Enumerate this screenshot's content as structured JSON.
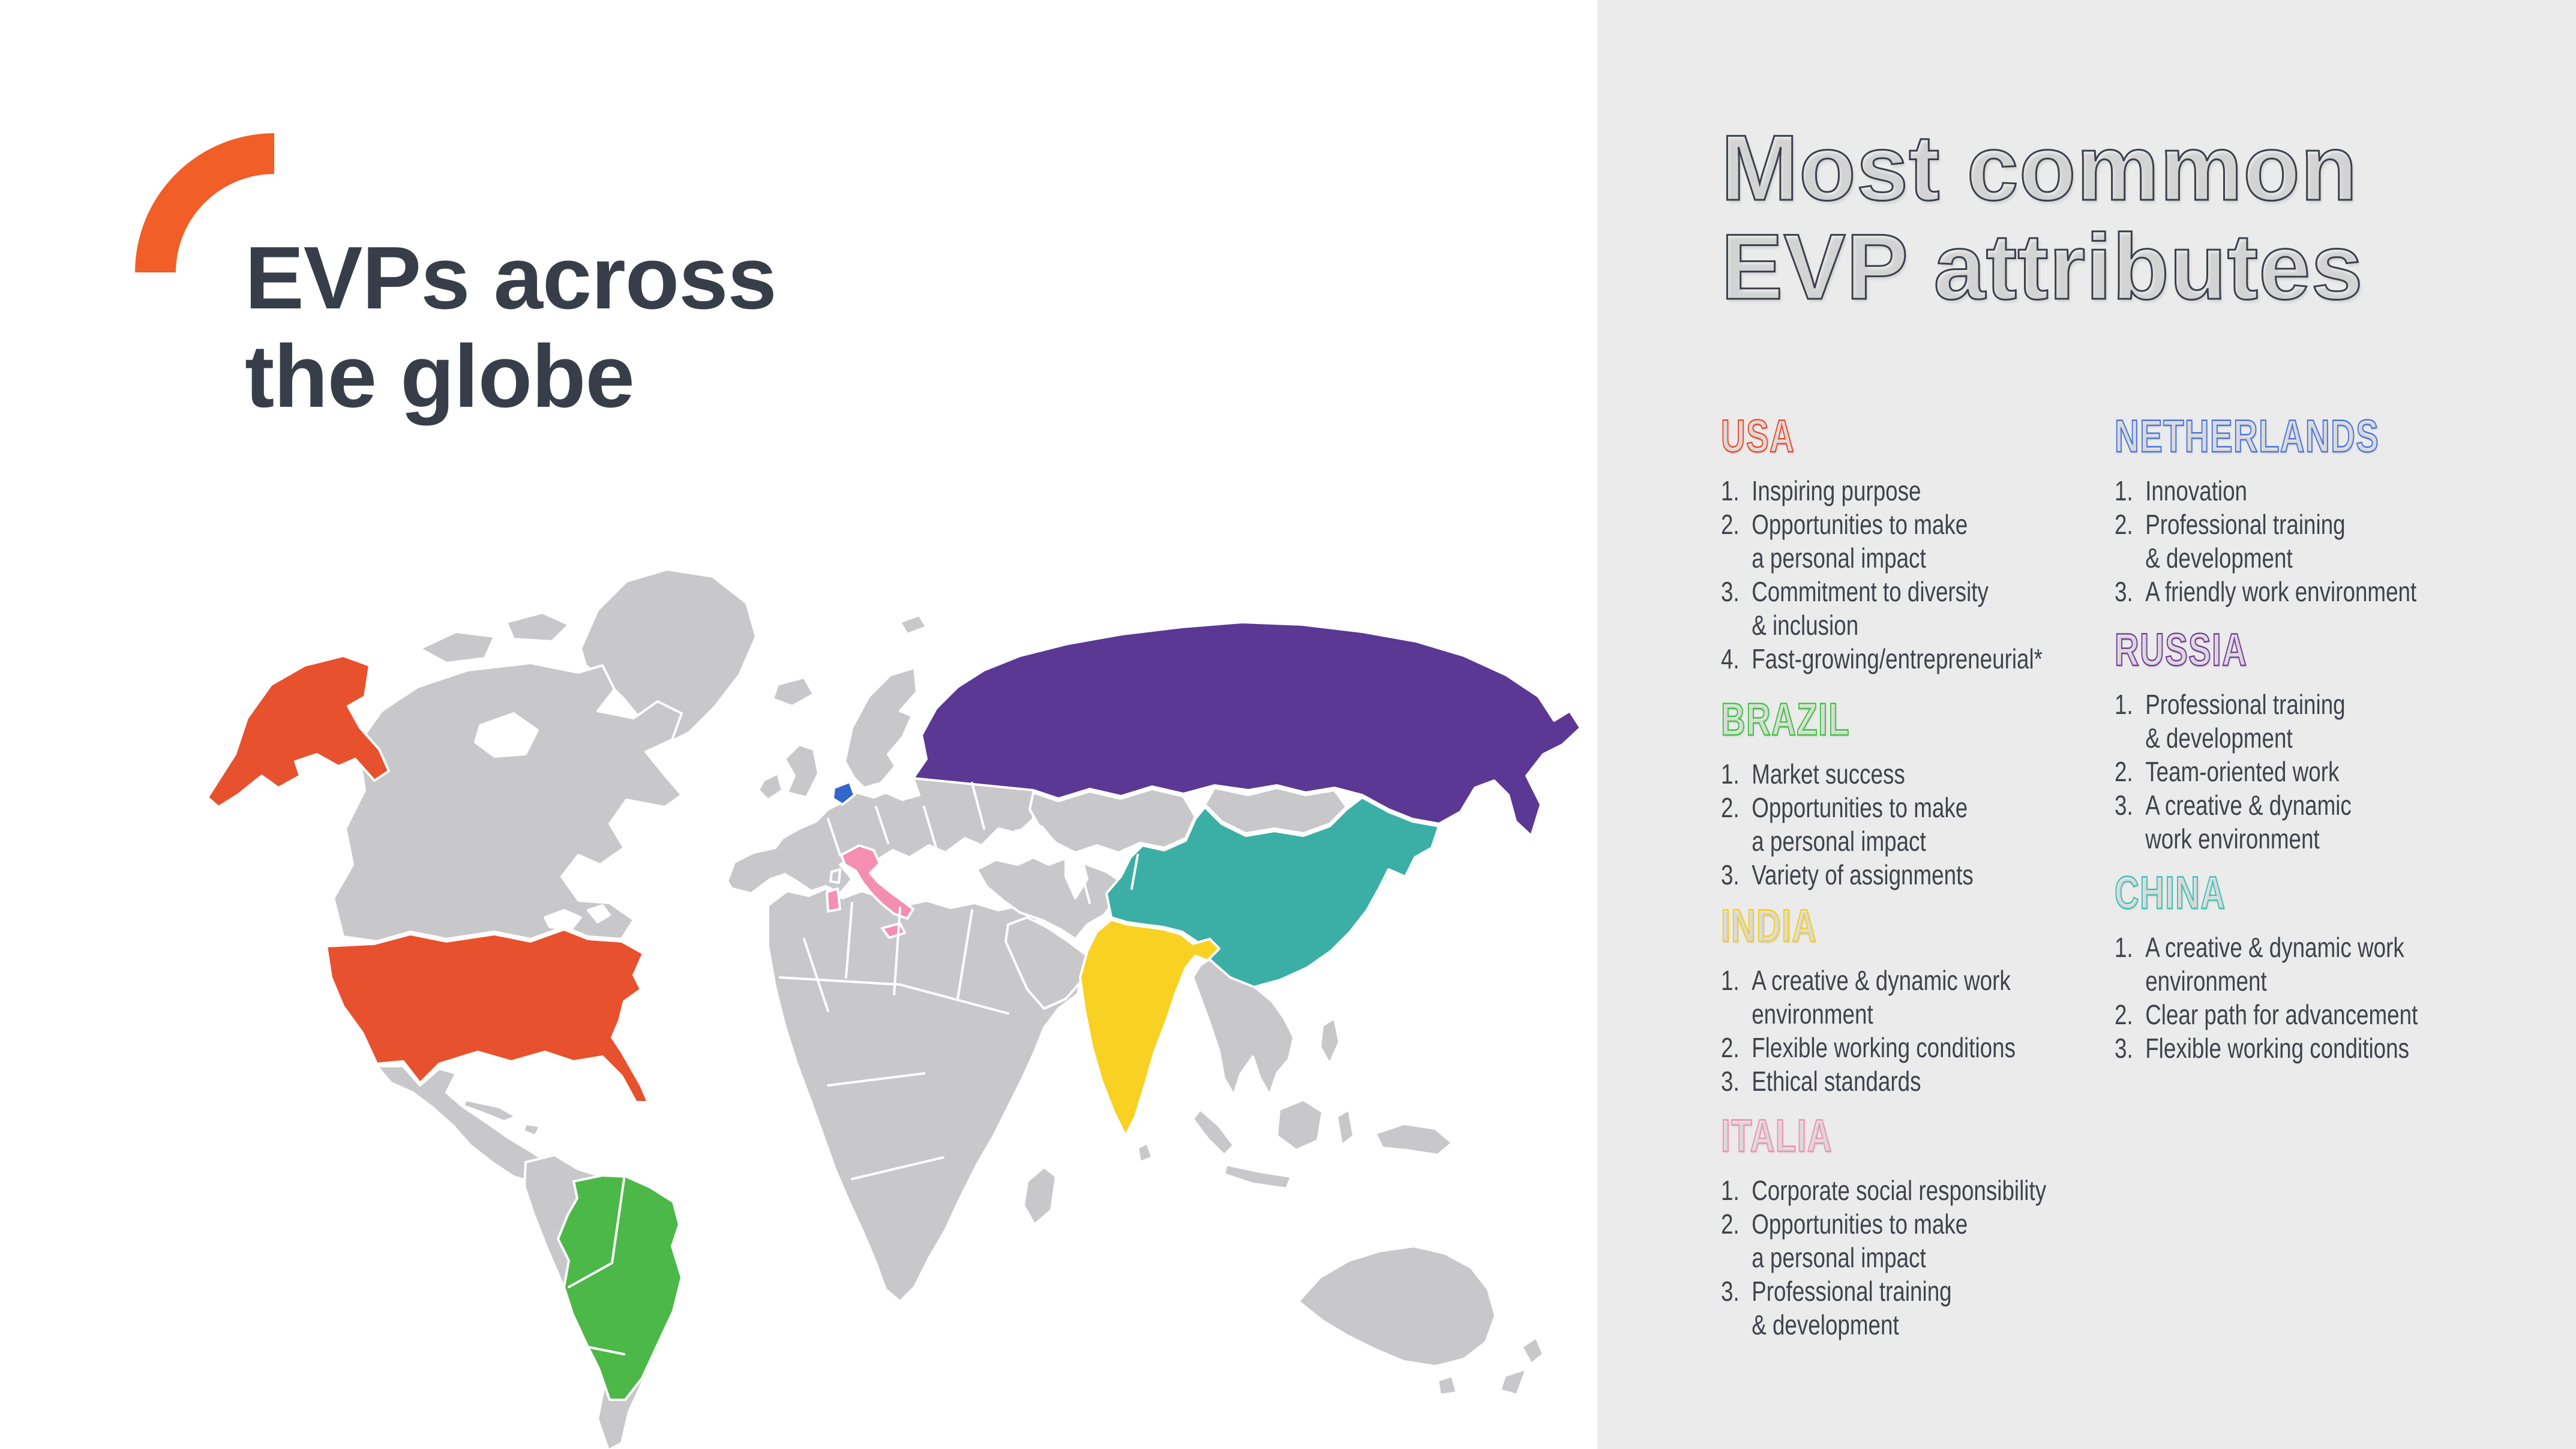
{
  "brand": {
    "logo_color": "#F15E28"
  },
  "left_panel": {
    "title_lines": [
      "EVPs across",
      "the globe"
    ],
    "title_color": "#383E49"
  },
  "right_panel": {
    "background": "#EBEBEB",
    "title_lines": [
      "Most common",
      "EVP attributes"
    ],
    "outline_color": "#3A404C",
    "list_text_color": "#3E434C",
    "sections": [
      {
        "id": "usa",
        "label": "USA",
        "color": "#F04B2B",
        "items": [
          "Inspiring purpose",
          "Opportunities to make\na personal impact",
          "Commitment to diversity\n& inclusion",
          "Fast-growing/entrepreneurial*"
        ]
      },
      {
        "id": "brazil",
        "label": "BRAZIL",
        "color": "#3EC73E",
        "items": [
          "Market success",
          "Opportunities to make\na personal impact",
          "Variety of assignments"
        ]
      },
      {
        "id": "india",
        "label": "INDIA",
        "color": "#F6CE0F",
        "items": [
          "A creative & dynamic work\nenvironment",
          "Flexible working conditions",
          "Ethical standards"
        ]
      },
      {
        "id": "italia",
        "label": "ITALIA",
        "color": "#F48FB1",
        "items": [
          "Corporate social responsibility",
          "Opportunities to make\na personal impact",
          "Professional training\n& development"
        ]
      },
      {
        "id": "netherlands",
        "label": "NETHERLANDS",
        "color": "#4C77DF",
        "items": [
          "Innovation",
          "Professional training\n& development",
          "A friendly work environment"
        ]
      },
      {
        "id": "russia",
        "label": "RUSSIA",
        "color": "#7A3F9D",
        "items": [
          "Professional training\n& development",
          "Team-oriented work",
          "A creative & dynamic\nwork environment"
        ]
      },
      {
        "id": "china",
        "label": "CHINA",
        "color": "#3FC2B6",
        "items": [
          "A creative & dynamic work\nenvironment",
          "Clear path for advancement",
          "Flexible working conditions"
        ]
      }
    ]
  },
  "map": {
    "land_color": "#C8C8CA",
    "border_color": "#FFFFFF",
    "water_color": "#FFFFFF",
    "countries": [
      {
        "id": "usa",
        "label": "USA",
        "color": "#E8512D"
      },
      {
        "id": "brazil",
        "label": "Brazil",
        "color": "#4CB848"
      },
      {
        "id": "russia",
        "label": "Russia",
        "color": "#5B3894"
      },
      {
        "id": "china",
        "label": "China",
        "color": "#3BAFA6"
      },
      {
        "id": "india",
        "label": "India",
        "color": "#F9D123"
      },
      {
        "id": "italia",
        "label": "Italy",
        "color": "#F48FB1"
      },
      {
        "id": "netherlands",
        "label": "Netherlands",
        "color": "#3366CB"
      }
    ]
  }
}
